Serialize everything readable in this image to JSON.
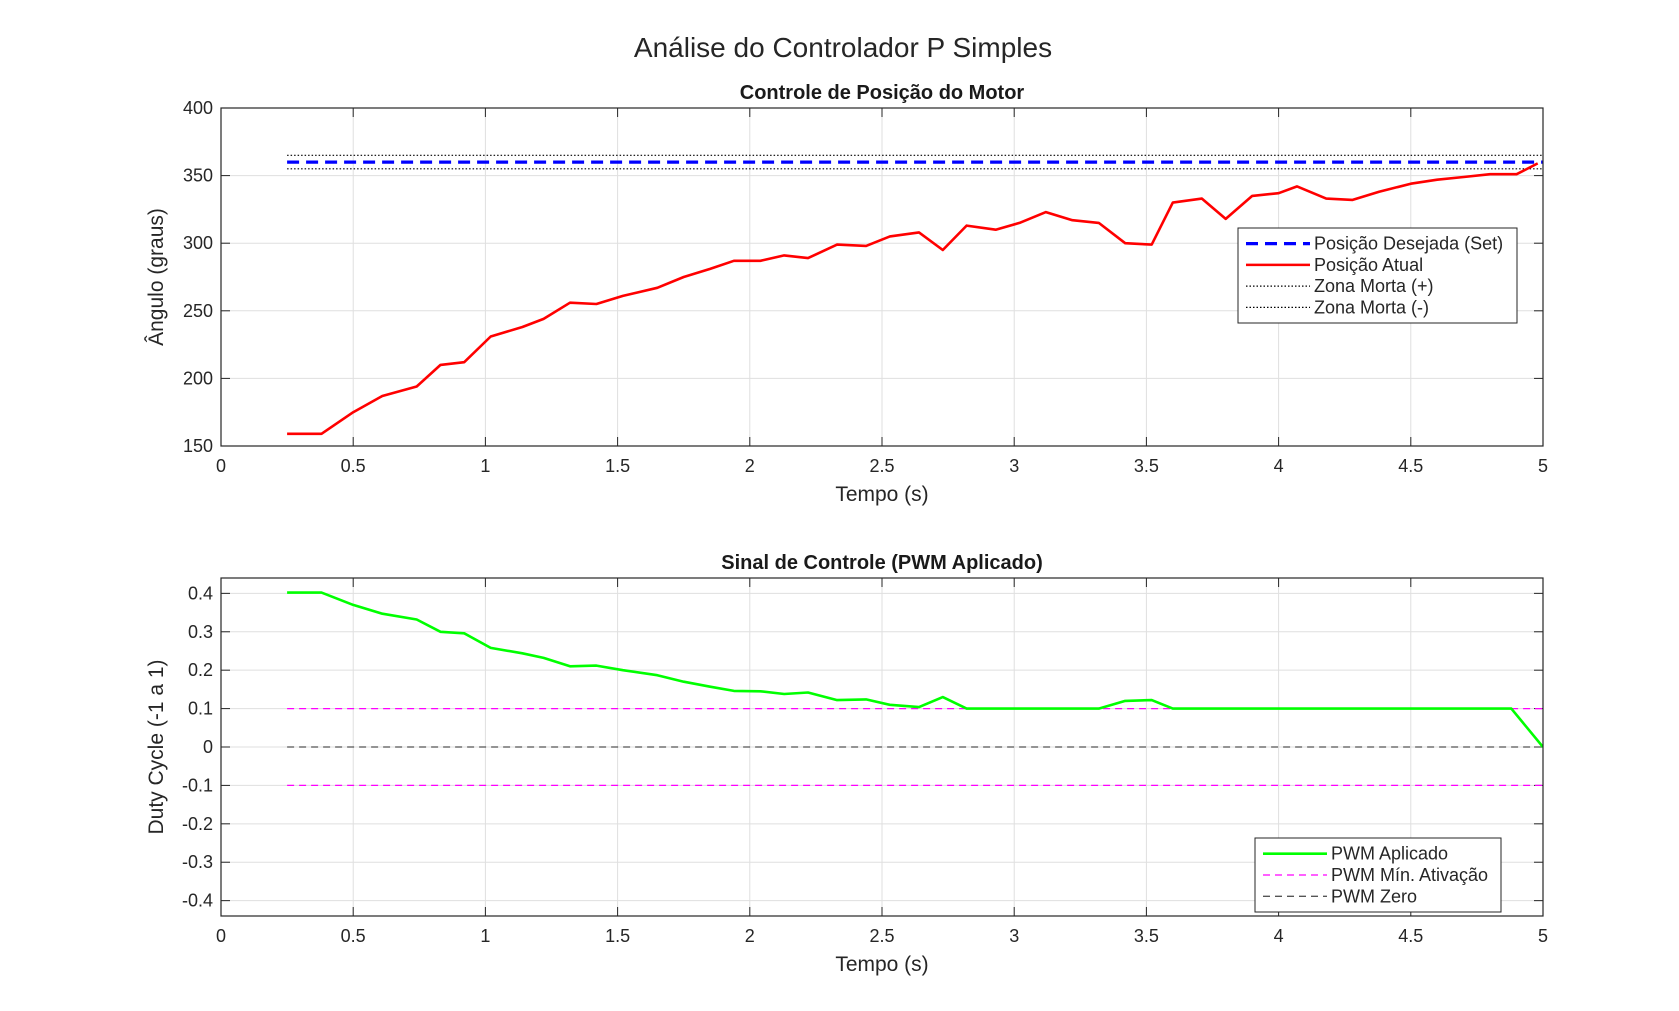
{
  "figure": {
    "suptitle": "Análise do Controlador P Simples"
  },
  "chart_data": [
    {
      "type": "line",
      "title": "Controle de Posição do Motor",
      "xlabel": "Tempo (s)",
      "ylabel": "Ângulo (graus)",
      "xlim": [
        0,
        5
      ],
      "ylim": [
        150,
        400
      ],
      "xticks": [
        0,
        0.5,
        1,
        1.5,
        2,
        2.5,
        3,
        3.5,
        4,
        4.5,
        5
      ],
      "xtick_labels": [
        "0",
        "0.5",
        "1",
        "1.5",
        "2",
        "2.5",
        "3",
        "3.5",
        "4",
        "4.5",
        "5"
      ],
      "yticks": [
        150,
        200,
        250,
        300,
        350,
        400
      ],
      "ytick_labels": [
        "150",
        "200",
        "250",
        "300",
        "350",
        "400"
      ],
      "grid": true,
      "legend_position": "right",
      "series": [
        {
          "name": "Posição Desejada (Set)",
          "color": "#0000ff",
          "style": "dashed-thick",
          "x": [
            0.25,
            5
          ],
          "y": [
            360,
            360
          ]
        },
        {
          "name": "Posição Atual",
          "color": "#ff0000",
          "style": "solid",
          "x": [
            0.25,
            0.38,
            0.5,
            0.61,
            0.74,
            0.83,
            0.92,
            1.02,
            1.14,
            1.22,
            1.32,
            1.42,
            1.52,
            1.65,
            1.75,
            1.85,
            1.94,
            2.04,
            2.13,
            2.22,
            2.33,
            2.44,
            2.53,
            2.64,
            2.73,
            2.82,
            2.93,
            3.02,
            3.12,
            3.22,
            3.32,
            3.42,
            3.52,
            3.6,
            3.71,
            3.8,
            3.9,
            4.0,
            4.07,
            4.18,
            4.28,
            4.38,
            4.5,
            4.6,
            4.7,
            4.8,
            4.9,
            4.98
          ],
          "y": [
            159,
            159,
            175,
            187,
            194,
            210,
            212,
            231,
            238,
            244,
            256,
            255,
            261,
            267,
            275,
            281,
            287,
            287,
            291,
            289,
            299,
            298,
            305,
            308,
            295,
            313,
            310,
            315,
            323,
            317,
            315,
            300,
            299,
            330,
            333,
            318,
            335,
            337,
            342,
            333,
            332,
            338,
            344,
            347,
            349,
            351,
            351,
            359
          ]
        },
        {
          "name": "Zona Morta (+)",
          "color": "#000000",
          "style": "dotted",
          "x": [
            0.25,
            5
          ],
          "y": [
            365,
            365
          ]
        },
        {
          "name": "Zona Morta (-)",
          "color": "#000000",
          "style": "dotted",
          "x": [
            0.25,
            5
          ],
          "y": [
            355,
            355
          ]
        }
      ]
    },
    {
      "type": "line",
      "title": "Sinal de Controle (PWM Aplicado)",
      "xlabel": "Tempo (s)",
      "ylabel": "Duty Cycle (-1 a 1)",
      "xlim": [
        0,
        5
      ],
      "ylim": [
        -0.44,
        0.44
      ],
      "xticks": [
        0,
        0.5,
        1,
        1.5,
        2,
        2.5,
        3,
        3.5,
        4,
        4.5,
        5
      ],
      "xtick_labels": [
        "0",
        "0.5",
        "1",
        "1.5",
        "2",
        "2.5",
        "3",
        "3.5",
        "4",
        "4.5",
        "5"
      ],
      "yticks": [
        -0.4,
        -0.3,
        -0.2,
        -0.1,
        0,
        0.1,
        0.2,
        0.3,
        0.4
      ],
      "ytick_labels": [
        "-0.4",
        "-0.3",
        "-0.2",
        "-0.1",
        "0",
        "0.1",
        "0.2",
        "0.3",
        "0.4"
      ],
      "grid": true,
      "legend_position": "bottom-right",
      "series": [
        {
          "name": "PWM Aplicado",
          "color": "#00ff00",
          "style": "solid",
          "x": [
            0.25,
            0.38,
            0.5,
            0.61,
            0.74,
            0.83,
            0.92,
            1.02,
            1.14,
            1.22,
            1.32,
            1.42,
            1.52,
            1.65,
            1.75,
            1.85,
            1.94,
            2.04,
            2.13,
            2.22,
            2.33,
            2.44,
            2.53,
            2.64,
            2.73,
            2.82,
            2.93,
            3.02,
            3.12,
            3.22,
            3.32,
            3.42,
            3.52,
            3.6,
            3.71,
            3.8,
            3.9,
            4.0,
            4.07,
            4.18,
            4.28,
            4.38,
            4.5,
            4.6,
            4.7,
            4.8,
            4.88,
            5.0
          ],
          "y": [
            0.402,
            0.402,
            0.37,
            0.347,
            0.332,
            0.3,
            0.296,
            0.258,
            0.244,
            0.232,
            0.21,
            0.212,
            0.2,
            0.187,
            0.17,
            0.157,
            0.146,
            0.145,
            0.138,
            0.142,
            0.122,
            0.124,
            0.11,
            0.104,
            0.13,
            0.1,
            0.1,
            0.1,
            0.1,
            0.1,
            0.1,
            0.12,
            0.122,
            0.1,
            0.1,
            0.1,
            0.1,
            0.1,
            0.1,
            0.1,
            0.1,
            0.1,
            0.1,
            0.1,
            0.1,
            0.1,
            0.1,
            0.0
          ]
        },
        {
          "name": "PWM Mín. Ativação",
          "color": "#ff00ff",
          "style": "dashed",
          "x": [
            0.25,
            5
          ],
          "y": [
            0.1,
            0.1
          ]
        },
        {
          "name": "PWM Zero",
          "color": "#555555",
          "style": "dashed",
          "x": [
            0.25,
            5
          ],
          "y": [
            0,
            0
          ]
        }
      ],
      "extra_lines": [
        {
          "color": "#ff00ff",
          "style": "dashed",
          "x": [
            0.25,
            5
          ],
          "y": [
            -0.1,
            -0.1
          ]
        }
      ]
    }
  ]
}
